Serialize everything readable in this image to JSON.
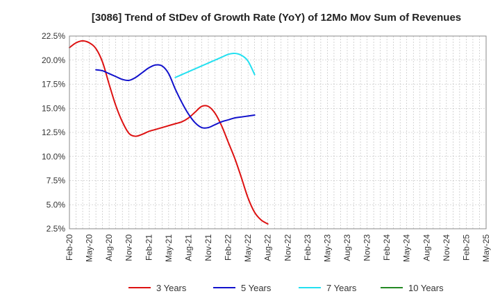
{
  "chart_data": {
    "type": "line",
    "title": "[3086]  Trend of StDev of Growth Rate (YoY) of 12Mo Mov Sum of Revenues",
    "xlabel": "",
    "ylabel": "",
    "ylim": [
      2.5,
      22.5
    ],
    "y_ticks": [
      "22.5%",
      "20.0%",
      "17.5%",
      "15.0%",
      "12.5%",
      "10.0%",
      "7.5%",
      "5.0%",
      "2.5%"
    ],
    "x_ticks": [
      "Feb-20",
      "May-20",
      "Aug-20",
      "Nov-20",
      "Feb-21",
      "May-21",
      "Aug-21",
      "Nov-21",
      "Feb-22",
      "May-22",
      "Aug-22",
      "Nov-22",
      "Feb-23",
      "May-23",
      "Aug-23",
      "Nov-23",
      "Feb-24",
      "May-24",
      "Aug-24",
      "Nov-24",
      "Feb-25",
      "May-25"
    ],
    "grid": true,
    "legend_position": "bottom",
    "series": [
      {
        "name": "3 Years",
        "color": "#dd1111",
        "points": [
          [
            0,
            21.3
          ],
          [
            1,
            21.8
          ],
          [
            2,
            22.0
          ],
          [
            3,
            21.8
          ],
          [
            4,
            21.2
          ],
          [
            5,
            19.8
          ],
          [
            6,
            17.5
          ],
          [
            7,
            15.3
          ],
          [
            8,
            13.6
          ],
          [
            9,
            12.4
          ],
          [
            10,
            12.1
          ],
          [
            11,
            12.3
          ],
          [
            12,
            12.6
          ],
          [
            13,
            12.8
          ],
          [
            14,
            13.0
          ],
          [
            15,
            13.2
          ],
          [
            16,
            13.4
          ],
          [
            17,
            13.6
          ],
          [
            18,
            14.0
          ],
          [
            19,
            14.6
          ],
          [
            20,
            15.2
          ],
          [
            21,
            15.2
          ],
          [
            22,
            14.5
          ],
          [
            23,
            13.2
          ],
          [
            24,
            11.5
          ],
          [
            25,
            9.8
          ],
          [
            26,
            7.8
          ],
          [
            27,
            5.7
          ],
          [
            28,
            4.2
          ],
          [
            29,
            3.4
          ],
          [
            30,
            3.0
          ]
        ]
      },
      {
        "name": "5 Years",
        "color": "#1111cc",
        "points": [
          [
            4,
            19.0
          ],
          [
            5,
            18.9
          ],
          [
            6,
            18.6
          ],
          [
            7,
            18.3
          ],
          [
            8,
            18.0
          ],
          [
            9,
            17.9
          ],
          [
            10,
            18.2
          ],
          [
            11,
            18.7
          ],
          [
            12,
            19.2
          ],
          [
            13,
            19.5
          ],
          [
            14,
            19.4
          ],
          [
            15,
            18.6
          ],
          [
            16,
            17.0
          ],
          [
            17,
            15.6
          ],
          [
            18,
            14.4
          ],
          [
            19,
            13.5
          ],
          [
            20,
            13.0
          ],
          [
            21,
            13.0
          ],
          [
            22,
            13.3
          ],
          [
            23,
            13.6
          ],
          [
            24,
            13.8
          ],
          [
            25,
            14.0
          ],
          [
            26,
            14.1
          ],
          [
            27,
            14.2
          ],
          [
            28,
            14.3
          ]
        ]
      },
      {
        "name": "7 Years",
        "color": "#22e0f0",
        "points": [
          [
            16,
            18.2
          ],
          [
            17,
            18.5
          ],
          [
            18,
            18.8
          ],
          [
            19,
            19.1
          ],
          [
            20,
            19.4
          ],
          [
            21,
            19.7
          ],
          [
            22,
            20.0
          ],
          [
            23,
            20.3
          ],
          [
            24,
            20.6
          ],
          [
            25,
            20.7
          ],
          [
            26,
            20.5
          ],
          [
            27,
            19.9
          ],
          [
            28,
            18.5
          ]
        ]
      },
      {
        "name": "10 Years",
        "color": "#228822",
        "points": []
      }
    ]
  }
}
